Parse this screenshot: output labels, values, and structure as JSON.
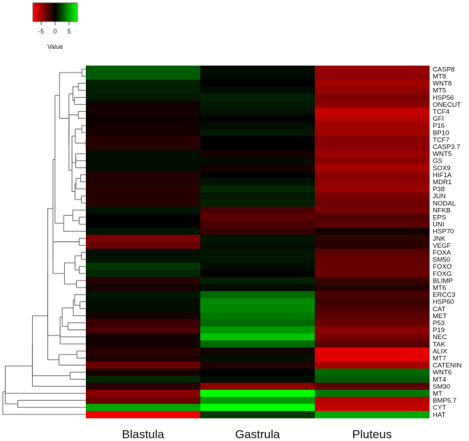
{
  "chart_data": {
    "type": "heatmap",
    "legend": {
      "title": "Value",
      "ticks": [
        "-5",
        "0",
        "5"
      ],
      "range": [
        -8,
        8
      ],
      "colors": {
        "low": "#ff0000",
        "mid": "#000000",
        "high": "#00ff00"
      },
      "placement": "top-left"
    },
    "columns": [
      "Blastula",
      "Gastrula",
      "Pluteus"
    ],
    "rows": [
      "CASP8",
      "MT8",
      "WNT8",
      "MT5",
      "HSP56",
      "ONECUT",
      "TCF4",
      "GFI",
      "P16",
      "BP10",
      "TCF7",
      "CASP3.7",
      "WNT5",
      "GS",
      "SOX9",
      "HIF1A",
      "MDR1",
      "P38",
      "JUN",
      "NODAL",
      "NFKB",
      "EPS",
      "UNI",
      "HSP70",
      "JNK",
      "VEGF",
      "FOXA",
      "SM50",
      "FOXO",
      "FOXG",
      "BLIMP",
      "MT6",
      "ERCC3",
      "HSP60",
      "CAT",
      "MET",
      "P53",
      "P19",
      "NEC",
      "TAK",
      "ALIX",
      "MT7",
      "CATENIN",
      "WNT6",
      "MT4",
      "SM30",
      "MT",
      "BMP5.7",
      "CYT",
      "HAT"
    ],
    "values": [
      [
        2.5,
        0.3,
        -4.5
      ],
      [
        2.5,
        0.2,
        -4.2
      ],
      [
        0.8,
        0.0,
        -4.8
      ],
      [
        0.8,
        0.3,
        -4.2
      ],
      [
        0.6,
        0.8,
        -3.6
      ],
      [
        -0.4,
        0.6,
        -4.0
      ],
      [
        -0.5,
        0.4,
        -6.0
      ],
      [
        -0.3,
        0.0,
        -5.5
      ],
      [
        -0.5,
        0.3,
        -4.8
      ],
      [
        -0.6,
        0.6,
        -4.7
      ],
      [
        -1.0,
        0.0,
        -4.0
      ],
      [
        -1.0,
        0.0,
        -4.0
      ],
      [
        0.3,
        -0.5,
        -4.5
      ],
      [
        0.3,
        0.3,
        -4.0
      ],
      [
        0.3,
        -0.5,
        -5.0
      ],
      [
        -0.8,
        0.0,
        -4.0
      ],
      [
        -0.8,
        0.4,
        -4.2
      ],
      [
        -1.0,
        1.0,
        -4.5
      ],
      [
        -1.0,
        0.6,
        -3.5
      ],
      [
        -1.0,
        0.8,
        -3.2
      ],
      [
        0.5,
        -2.0,
        -3.5
      ],
      [
        0.0,
        -2.5,
        -2.2
      ],
      [
        0.0,
        -2.0,
        -2.5
      ],
      [
        0.5,
        -1.5,
        -0.5
      ],
      [
        -3.5,
        0.5,
        -1.2
      ],
      [
        -3.0,
        0.3,
        -1.0
      ],
      [
        0.3,
        0.5,
        -2.5
      ],
      [
        0.5,
        0.5,
        -2.8
      ],
      [
        1.5,
        0.3,
        -3.0
      ],
      [
        1.0,
        0.0,
        -3.0
      ],
      [
        -1.0,
        0.8,
        -1.5
      ],
      [
        -0.5,
        0.3,
        -1.0
      ],
      [
        0.5,
        3.0,
        -2.0
      ],
      [
        0.3,
        4.0,
        -1.5
      ],
      [
        0.3,
        4.0,
        -2.0
      ],
      [
        -0.5,
        3.5,
        -2.5
      ],
      [
        -1.5,
        3.0,
        -3.0
      ],
      [
        -2.0,
        4.5,
        -4.0
      ],
      [
        -0.5,
        6.0,
        -3.5
      ],
      [
        -0.5,
        3.0,
        -2.5
      ],
      [
        -1.0,
        -0.5,
        -7.0
      ],
      [
        -0.8,
        0.3,
        -7.0
      ],
      [
        -3.0,
        -0.8,
        -5.0
      ],
      [
        -0.5,
        0.0,
        3.0
      ],
      [
        1.0,
        0.3,
        2.5
      ],
      [
        -1.0,
        -4.0,
        -2.5
      ],
      [
        -4.0,
        8.0,
        3.5
      ],
      [
        -3.0,
        4.5,
        -5.5
      ],
      [
        5.0,
        8.5,
        -6.0
      ],
      [
        -7.5,
        1.5,
        5.0
      ]
    ]
  },
  "dendrogram": {
    "node_height_unit": "relative",
    "leaves_order": "top-to-bottom"
  }
}
